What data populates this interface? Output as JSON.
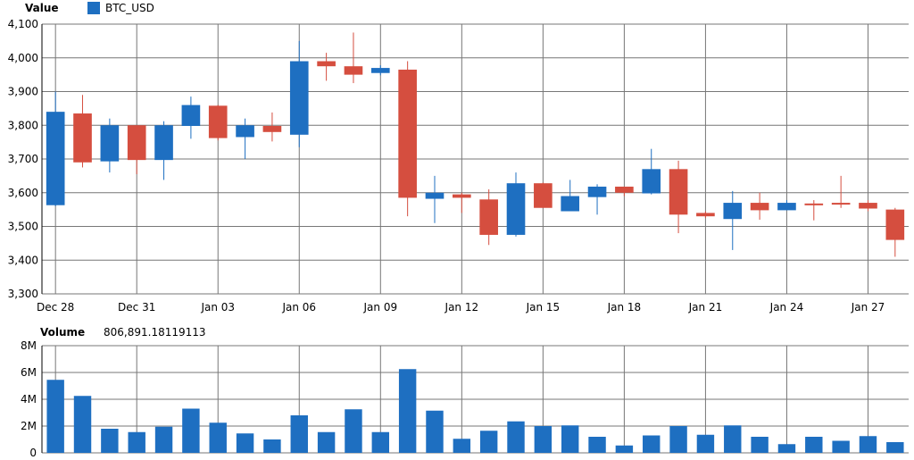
{
  "legend": {
    "value_label": "Value",
    "series_name": "BTC_USD",
    "series_color": "#1e6fc1",
    "volume_label": "Volume",
    "volume_value": "806,891.18119113"
  },
  "colors": {
    "up": "#1e6fc1",
    "down": "#d54e3f",
    "grid": "#777777",
    "axis": "#000000"
  },
  "chart_data": [
    {
      "type": "candlestick",
      "title": "Value",
      "series_name": "BTC_USD",
      "ylim": [
        3300,
        4100
      ],
      "yticks": [
        "3,300",
        "3,400",
        "3,500",
        "3,600",
        "3,700",
        "3,800",
        "3,900",
        "4,000",
        "4,100"
      ],
      "yticks_values": [
        3300,
        3400,
        3500,
        3600,
        3700,
        3800,
        3900,
        4000,
        4100
      ],
      "xticks": [
        "Dec 28",
        "Dec 31",
        "Jan 03",
        "Jan 06",
        "Jan 09",
        "Jan 12",
        "Jan 15",
        "Jan 18",
        "Jan 21",
        "Jan 24",
        "Jan 27"
      ],
      "xticks_day_index": [
        0,
        3,
        6,
        9,
        12,
        15,
        18,
        21,
        24,
        27,
        30
      ],
      "candles": [
        {
          "open": 3563,
          "high": 3900,
          "low": 3560,
          "close": 3840
        },
        {
          "open": 3835,
          "high": 3890,
          "low": 3675,
          "close": 3690
        },
        {
          "open": 3693,
          "high": 3820,
          "low": 3660,
          "close": 3800
        },
        {
          "open": 3800,
          "high": 3800,
          "low": 3655,
          "close": 3697
        },
        {
          "open": 3697,
          "high": 3812,
          "low": 3638,
          "close": 3800
        },
        {
          "open": 3798,
          "high": 3885,
          "low": 3760,
          "close": 3860
        },
        {
          "open": 3858,
          "high": 3860,
          "low": 3755,
          "close": 3762
        },
        {
          "open": 3765,
          "high": 3820,
          "low": 3700,
          "close": 3800
        },
        {
          "open": 3798,
          "high": 3838,
          "low": 3752,
          "close": 3780
        },
        {
          "open": 3772,
          "high": 4050,
          "low": 3735,
          "close": 3990
        },
        {
          "open": 3990,
          "high": 4015,
          "low": 3932,
          "close": 3975
        },
        {
          "open": 3975,
          "high": 4075,
          "low": 3925,
          "close": 3950
        },
        {
          "open": 3955,
          "high": 3978,
          "low": 3948,
          "close": 3970
        },
        {
          "open": 3965,
          "high": 3990,
          "low": 3530,
          "close": 3585
        },
        {
          "open": 3582,
          "high": 3650,
          "low": 3510,
          "close": 3600
        },
        {
          "open": 3595,
          "high": 3600,
          "low": 3540,
          "close": 3585
        },
        {
          "open": 3580,
          "high": 3610,
          "low": 3445,
          "close": 3475
        },
        {
          "open": 3475,
          "high": 3660,
          "low": 3470,
          "close": 3628
        },
        {
          "open": 3628,
          "high": 3630,
          "low": 3555,
          "close": 3555
        },
        {
          "open": 3545,
          "high": 3638,
          "low": 3545,
          "close": 3590
        },
        {
          "open": 3587,
          "high": 3625,
          "low": 3535,
          "close": 3618
        },
        {
          "open": 3618,
          "high": 3618,
          "low": 3590,
          "close": 3600
        },
        {
          "open": 3598,
          "high": 3730,
          "low": 3595,
          "close": 3670
        },
        {
          "open": 3670,
          "high": 3695,
          "low": 3480,
          "close": 3535
        },
        {
          "open": 3540,
          "high": 3545,
          "low": 3525,
          "close": 3530
        },
        {
          "open": 3522,
          "high": 3605,
          "low": 3430,
          "close": 3570
        },
        {
          "open": 3570,
          "high": 3600,
          "low": 3520,
          "close": 3548
        },
        {
          "open": 3548,
          "high": 3578,
          "low": 3548,
          "close": 3570
        },
        {
          "open": 3568,
          "high": 3578,
          "low": 3518,
          "close": 3565
        },
        {
          "open": 3570,
          "high": 3650,
          "low": 3555,
          "close": 3568
        },
        {
          "open": 3570,
          "high": 3578,
          "low": 3545,
          "close": 3553
        },
        {
          "open": 3550,
          "high": 3555,
          "low": 3410,
          "close": 3460
        }
      ]
    },
    {
      "type": "bar",
      "title": "Volume",
      "ylim": [
        0,
        8000000
      ],
      "yticks": [
        "0",
        "2M",
        "4M",
        "6M",
        "8M"
      ],
      "yticks_values": [
        0,
        2000000,
        4000000,
        6000000,
        8000000
      ],
      "values": [
        5450000,
        4250000,
        1800000,
        1550000,
        1950000,
        3300000,
        2250000,
        1450000,
        1000000,
        2800000,
        1550000,
        3250000,
        1550000,
        6250000,
        3150000,
        1050000,
        1650000,
        2350000,
        2000000,
        2050000,
        1200000,
        550000,
        1300000,
        2000000,
        1350000,
        2050000,
        1200000,
        650000,
        1200000,
        900000,
        1250000,
        800000
      ]
    }
  ]
}
